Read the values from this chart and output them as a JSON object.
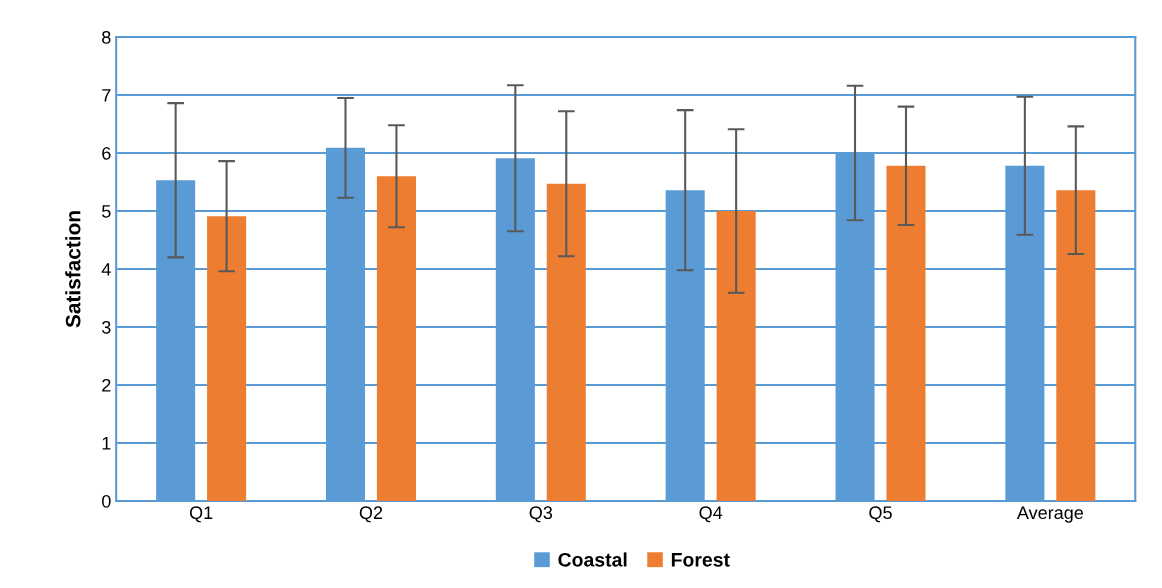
{
  "chart_data": {
    "type": "bar",
    "ylabel": "Satisfaction",
    "categories": [
      "Q1",
      "Q2",
      "Q3",
      "Q4",
      "Q5",
      "Average"
    ],
    "series": [
      {
        "name": "Coastal",
        "color": "#5b9bd5",
        "values": [
          5.53,
          6.09,
          5.91,
          5.36,
          6.0,
          5.78
        ],
        "errors": [
          1.33,
          0.86,
          1.26,
          1.38,
          1.16,
          1.19
        ]
      },
      {
        "name": "Forest",
        "color": "#ed7d31",
        "values": [
          4.91,
          5.6,
          5.47,
          5.0,
          5.78,
          5.36
        ],
        "errors": [
          0.95,
          0.88,
          1.25,
          1.41,
          1.02,
          1.1
        ]
      }
    ],
    "ylim": [
      0,
      8
    ],
    "yticks": [
      0,
      1,
      2,
      3,
      4,
      5,
      6,
      7,
      8
    ],
    "grid": "y",
    "legend": "bottom"
  }
}
